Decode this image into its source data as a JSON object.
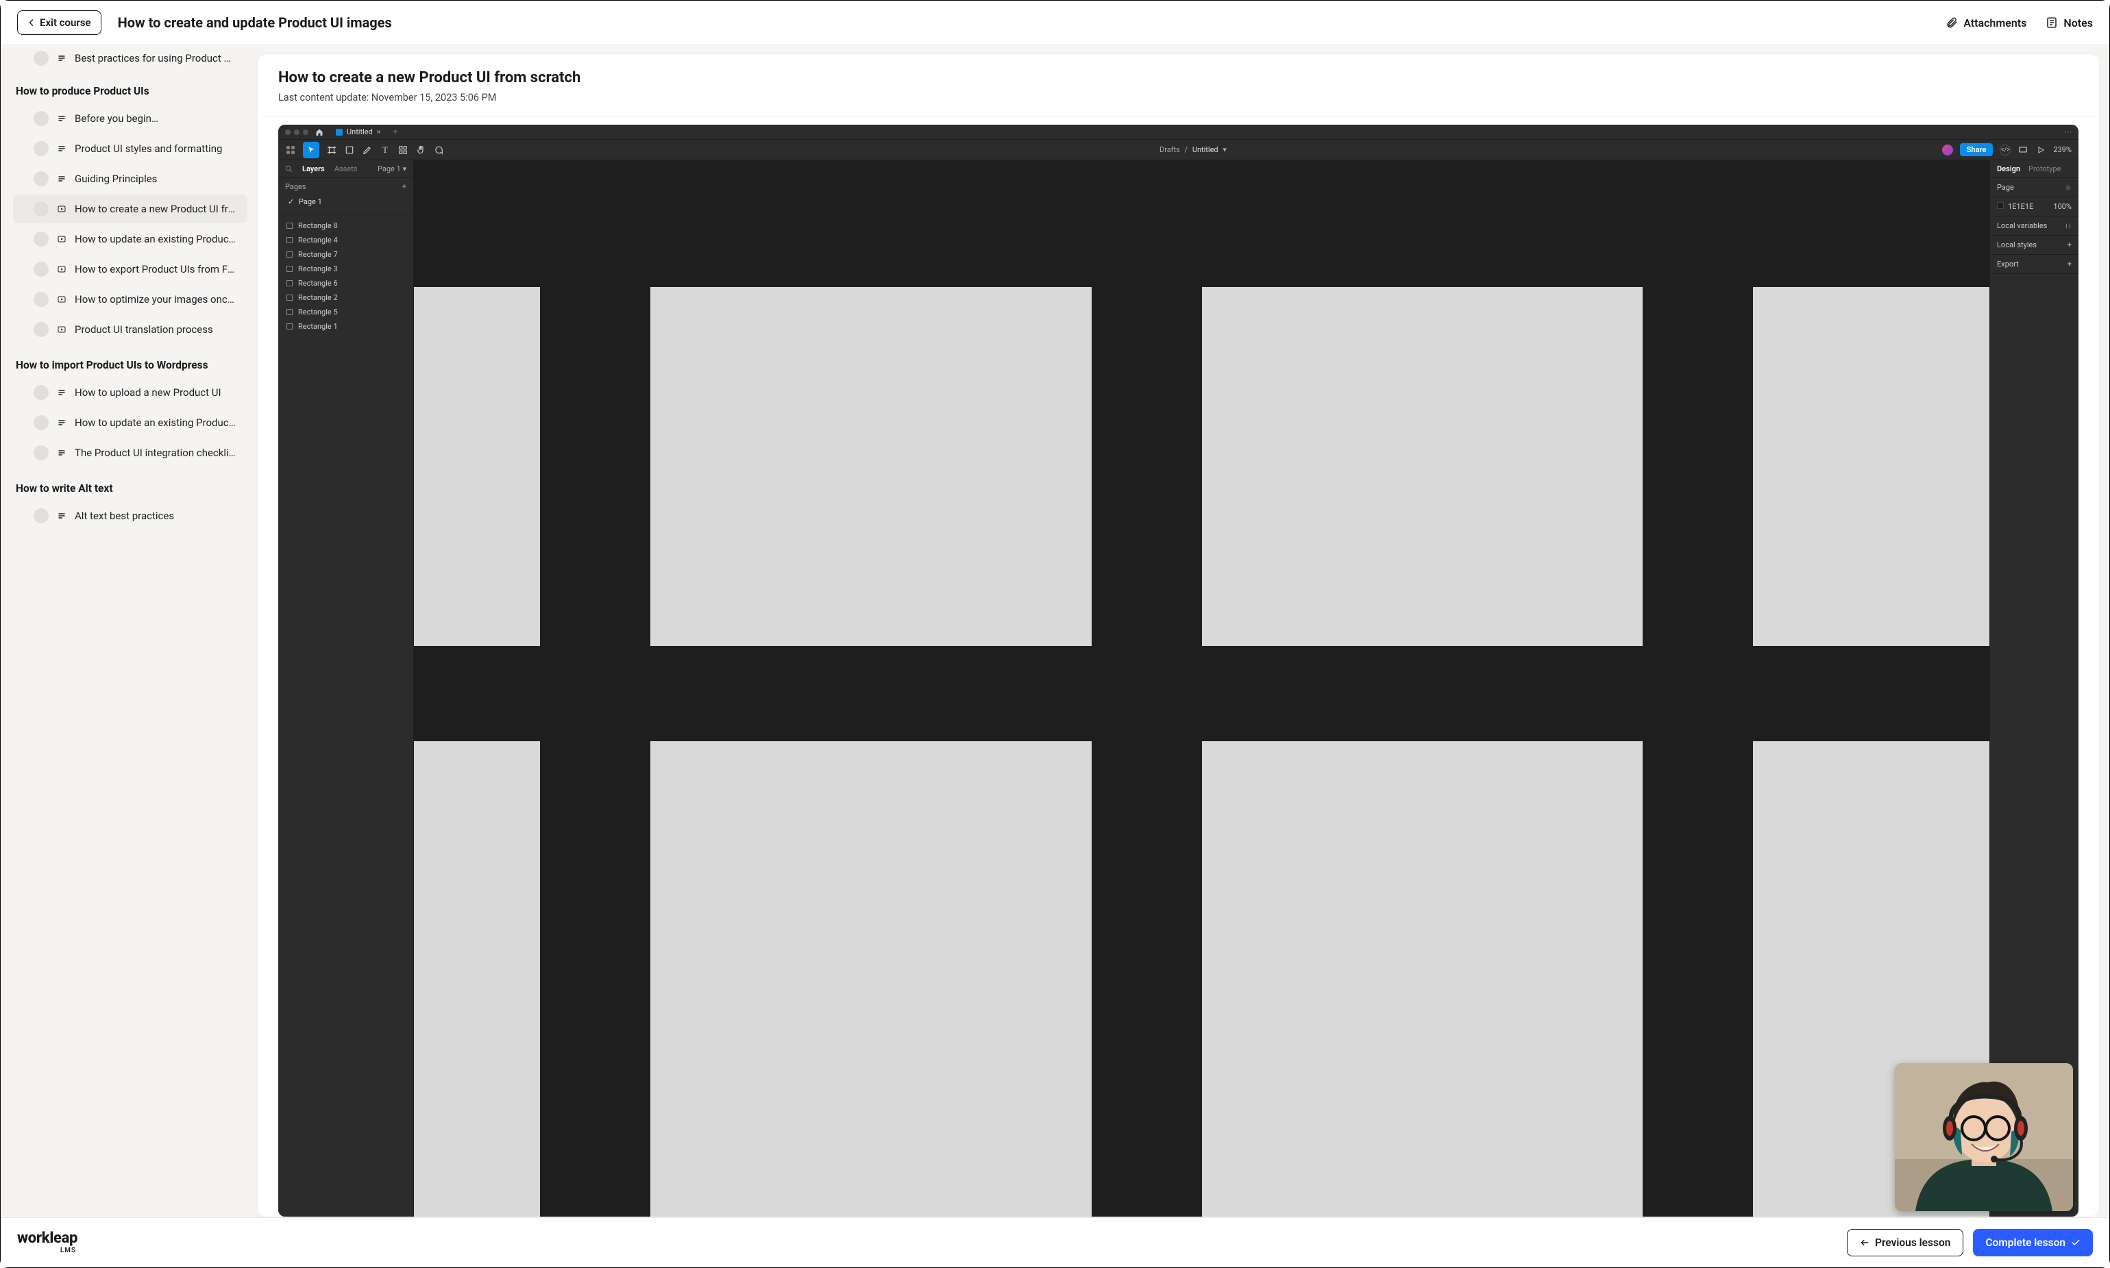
{
  "header": {
    "exit_label": "Exit course",
    "course_title": "How to create and update Product UI images",
    "attachments_label": "Attachments",
    "notes_label": "Notes"
  },
  "sidebar": {
    "truncated_top_label": "Best practices for using Product UIs in you…",
    "sections": [
      {
        "title": "How to produce Product UIs",
        "items": [
          {
            "label": "Before you begin…",
            "type": "text",
            "active": false
          },
          {
            "label": "Product UI styles and formatting",
            "type": "text",
            "active": false
          },
          {
            "label": "Guiding Principles",
            "type": "text",
            "active": false
          },
          {
            "label": "How to create a new Product UI from scr…",
            "type": "video",
            "active": true
          },
          {
            "label": "How to update an existing Product UI",
            "type": "video",
            "active": false
          },
          {
            "label": "How to export Product UIs from Figma",
            "type": "video",
            "active": false
          },
          {
            "label": "How to optimize your images once export…",
            "type": "video",
            "active": false
          },
          {
            "label": "Product UI translation process",
            "type": "video",
            "active": false
          }
        ]
      },
      {
        "title": "How to import Product UIs to Wordpress",
        "items": [
          {
            "label": "How to upload a new Product UI",
            "type": "text",
            "active": false
          },
          {
            "label": "How to update an existing Product UI",
            "type": "text",
            "active": false
          },
          {
            "label": "The Product UI integration checklist",
            "type": "text",
            "active": false
          }
        ]
      },
      {
        "title": "How to write Alt text",
        "items": [
          {
            "label": "Alt text best practices",
            "type": "text",
            "active": false
          }
        ]
      }
    ]
  },
  "content": {
    "title": "How to create a new Product UI from scratch",
    "meta": "Last content update: November 15, 2023 5:06 PM"
  },
  "figma": {
    "tab_label": "Untitled",
    "breadcrumb_parent": "Drafts",
    "breadcrumb_current": "Untitled",
    "share_label": "Share",
    "zoom_label": "239%",
    "left_tabs": {
      "layers": "Layers",
      "assets": "Assets",
      "page_selector": "Page 1"
    },
    "pages_header": "Pages",
    "pages": [
      "Page 1"
    ],
    "layers": [
      "Rectangle 8",
      "Rectangle 4",
      "Rectangle 7",
      "Rectangle 3",
      "Rectangle 6",
      "Rectangle 2",
      "Rectangle 5",
      "Rectangle 1"
    ],
    "right_tabs": {
      "design": "Design",
      "prototype": "Prototype"
    },
    "right_panels": {
      "page": {
        "label": "Page",
        "color_hex": "1E1E1E",
        "opacity": "100%"
      },
      "local_vars": "Local variables",
      "local_styles": "Local styles",
      "export": "Export"
    },
    "canvas": {
      "bg": "#1e1e1e",
      "art_bg": "#d9d9d9",
      "row1_top_pct": 12,
      "row1_h_pct": 34,
      "row2_top_pct": 55,
      "row2_h_pct": 45,
      "col_w_pct": 28,
      "gap_pct": 7,
      "first_left_pct": -20
    }
  },
  "footer": {
    "brand": "workleap",
    "brand_sub": "LMS",
    "prev_label": "Previous lesson",
    "complete_label": "Complete lesson"
  },
  "colors": {
    "accent_blue": "#2b5cff",
    "figma_blue": "#0c8ce9",
    "sidebar_bg": "#f5f4f2",
    "active_bg": "#ebeae8"
  }
}
